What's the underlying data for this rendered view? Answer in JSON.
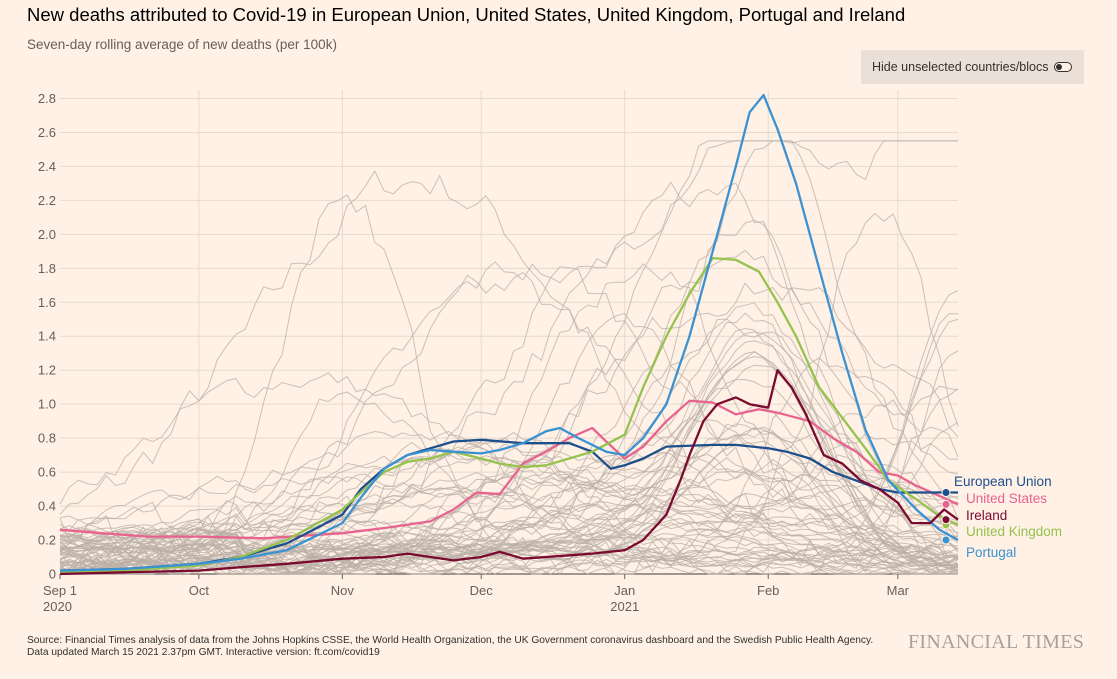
{
  "title": "New deaths attributed to Covid-19 in European Union, United States, United Kingdom, Portugal and Ireland",
  "subtitle": "Seven-day rolling average of new deaths (per 100k)",
  "toggle": {
    "label": "Hide unselected countries/blocs",
    "state": "off"
  },
  "footer": {
    "source": "Source: Financial Times analysis of data from the Johns Hopkins CSSE, the World Health Organization, the UK Government coronavirus dashboard and the Swedish Public Health Agency.",
    "updated": "Data updated March 15 2021 2.37pm GMT. Interactive version: ft.com/covid19"
  },
  "brand": "FINANCIAL TIMES",
  "colors": {
    "background": "#FFF1E5",
    "grid": "#E6D9CE",
    "background_lines": "#B9AFA7",
    "European Union": "#1D4F8C",
    "United States": "#E8638F",
    "Ireland": "#7A0A2F",
    "United Kingdom": "#96C24E",
    "Portugal": "#3A92D2"
  },
  "chart_data": {
    "type": "line",
    "x_type": "date",
    "xlim": [
      "2020-09-01",
      "2021-03-14"
    ],
    "ylim": [
      0,
      2.85
    ],
    "yticks": [
      0,
      0.2,
      0.4,
      0.6,
      0.8,
      1.0,
      1.2,
      1.4,
      1.6,
      1.8,
      2.0,
      2.2,
      2.4,
      2.6,
      2.8
    ],
    "ytick_labels": [
      "0",
      "0.2",
      "0.4",
      "0.6",
      "0.8",
      "1.0",
      "1.2",
      "1.4",
      "1.6",
      "1.8",
      "2.0",
      "2.2",
      "2.4",
      "2.6",
      "2.8"
    ],
    "xticks": [
      {
        "date": "2020-09-01",
        "label": "Sep 1",
        "sublabel": "2020"
      },
      {
        "date": "2020-10-01",
        "label": "Oct",
        "sublabel": ""
      },
      {
        "date": "2020-11-01",
        "label": "Nov",
        "sublabel": ""
      },
      {
        "date": "2020-12-01",
        "label": "Dec",
        "sublabel": ""
      },
      {
        "date": "2021-01-01",
        "label": "Jan",
        "sublabel": "2021"
      },
      {
        "date": "2021-02-01",
        "label": "Feb",
        "sublabel": ""
      },
      {
        "date": "2021-03-01",
        "label": "Mar",
        "sublabel": ""
      }
    ],
    "grid": "horizontal",
    "series": [
      {
        "name": "United States",
        "points": [
          [
            "2020-09-01",
            0.26
          ],
          [
            "2020-09-10",
            0.24
          ],
          [
            "2020-09-20",
            0.22
          ],
          [
            "2020-10-01",
            0.22
          ],
          [
            "2020-10-15",
            0.21
          ],
          [
            "2020-11-01",
            0.24
          ],
          [
            "2020-11-10",
            0.27
          ],
          [
            "2020-11-20",
            0.31
          ],
          [
            "2020-11-25",
            0.38
          ],
          [
            "2020-11-30",
            0.48
          ],
          [
            "2020-12-05",
            0.47
          ],
          [
            "2020-12-10",
            0.65
          ],
          [
            "2020-12-15",
            0.72
          ],
          [
            "2020-12-20",
            0.8
          ],
          [
            "2020-12-25",
            0.86
          ],
          [
            "2020-12-28",
            0.78
          ],
          [
            "2021-01-01",
            0.68
          ],
          [
            "2021-01-05",
            0.75
          ],
          [
            "2021-01-10",
            0.9
          ],
          [
            "2021-01-15",
            1.02
          ],
          [
            "2021-01-20",
            1.01
          ],
          [
            "2021-01-25",
            0.94
          ],
          [
            "2021-01-30",
            0.97
          ],
          [
            "2021-02-03",
            0.95
          ],
          [
            "2021-02-10",
            0.9
          ],
          [
            "2021-02-15",
            0.8
          ],
          [
            "2021-02-20",
            0.72
          ],
          [
            "2021-02-25",
            0.6
          ],
          [
            "2021-03-01",
            0.58
          ],
          [
            "2021-03-05",
            0.52
          ],
          [
            "2021-03-10",
            0.46
          ],
          [
            "2021-03-14",
            0.41
          ]
        ]
      },
      {
        "name": "European Union",
        "points": [
          [
            "2020-09-01",
            0.02
          ],
          [
            "2020-09-15",
            0.03
          ],
          [
            "2020-10-01",
            0.06
          ],
          [
            "2020-10-10",
            0.1
          ],
          [
            "2020-10-20",
            0.18
          ],
          [
            "2020-10-25",
            0.25
          ],
          [
            "2020-11-01",
            0.35
          ],
          [
            "2020-11-05",
            0.5
          ],
          [
            "2020-11-10",
            0.62
          ],
          [
            "2020-11-15",
            0.7
          ],
          [
            "2020-11-20",
            0.74
          ],
          [
            "2020-11-25",
            0.78
          ],
          [
            "2020-12-01",
            0.79
          ],
          [
            "2020-12-10",
            0.77
          ],
          [
            "2020-12-15",
            0.77
          ],
          [
            "2020-12-20",
            0.77
          ],
          [
            "2020-12-25",
            0.72
          ],
          [
            "2020-12-29",
            0.62
          ],
          [
            "2021-01-01",
            0.64
          ],
          [
            "2021-01-05",
            0.68
          ],
          [
            "2021-01-10",
            0.75
          ],
          [
            "2021-01-20",
            0.76
          ],
          [
            "2021-01-25",
            0.76
          ],
          [
            "2021-02-01",
            0.74
          ],
          [
            "2021-02-05",
            0.72
          ],
          [
            "2021-02-10",
            0.68
          ],
          [
            "2021-02-15",
            0.6
          ],
          [
            "2021-02-20",
            0.55
          ],
          [
            "2021-02-25",
            0.5
          ],
          [
            "2021-03-01",
            0.48
          ],
          [
            "2021-03-05",
            0.48
          ],
          [
            "2021-03-10",
            0.48
          ],
          [
            "2021-03-14",
            0.48
          ]
        ]
      },
      {
        "name": "United Kingdom",
        "points": [
          [
            "2020-09-01",
            0.01
          ],
          [
            "2020-09-15",
            0.02
          ],
          [
            "2020-10-01",
            0.05
          ],
          [
            "2020-10-10",
            0.1
          ],
          [
            "2020-10-20",
            0.2
          ],
          [
            "2020-11-01",
            0.38
          ],
          [
            "2020-11-05",
            0.48
          ],
          [
            "2020-11-10",
            0.6
          ],
          [
            "2020-11-15",
            0.66
          ],
          [
            "2020-11-20",
            0.68
          ],
          [
            "2020-11-25",
            0.72
          ],
          [
            "2020-12-01",
            0.68
          ],
          [
            "2020-12-05",
            0.65
          ],
          [
            "2020-12-10",
            0.63
          ],
          [
            "2020-12-15",
            0.64
          ],
          [
            "2020-12-20",
            0.68
          ],
          [
            "2020-12-25",
            0.72
          ],
          [
            "2021-01-01",
            0.82
          ],
          [
            "2021-01-05",
            1.1
          ],
          [
            "2021-01-10",
            1.4
          ],
          [
            "2021-01-15",
            1.65
          ],
          [
            "2021-01-20",
            1.86
          ],
          [
            "2021-01-25",
            1.85
          ],
          [
            "2021-01-30",
            1.78
          ],
          [
            "2021-02-03",
            1.6
          ],
          [
            "2021-02-07",
            1.4
          ],
          [
            "2021-02-12",
            1.1
          ],
          [
            "2021-02-17",
            0.92
          ],
          [
            "2021-02-22",
            0.74
          ],
          [
            "2021-02-27",
            0.55
          ],
          [
            "2021-03-05",
            0.44
          ],
          [
            "2021-03-10",
            0.34
          ],
          [
            "2021-03-14",
            0.29
          ]
        ]
      },
      {
        "name": "Portugal",
        "points": [
          [
            "2020-09-01",
            0.02
          ],
          [
            "2020-09-15",
            0.03
          ],
          [
            "2020-10-01",
            0.06
          ],
          [
            "2020-10-10",
            0.09
          ],
          [
            "2020-10-20",
            0.14
          ],
          [
            "2020-11-01",
            0.3
          ],
          [
            "2020-11-05",
            0.45
          ],
          [
            "2020-11-10",
            0.62
          ],
          [
            "2020-11-15",
            0.7
          ],
          [
            "2020-11-20",
            0.73
          ],
          [
            "2020-11-25",
            0.72
          ],
          [
            "2020-12-01",
            0.71
          ],
          [
            "2020-12-05",
            0.73
          ],
          [
            "2020-12-10",
            0.77
          ],
          [
            "2020-12-15",
            0.84
          ],
          [
            "2020-12-18",
            0.86
          ],
          [
            "2020-12-22",
            0.8
          ],
          [
            "2020-12-28",
            0.72
          ],
          [
            "2021-01-01",
            0.7
          ],
          [
            "2021-01-05",
            0.8
          ],
          [
            "2021-01-10",
            1.0
          ],
          [
            "2021-01-15",
            1.4
          ],
          [
            "2021-01-20",
            1.9
          ],
          [
            "2021-01-25",
            2.4
          ],
          [
            "2021-01-28",
            2.72
          ],
          [
            "2021-01-31",
            2.82
          ],
          [
            "2021-02-03",
            2.62
          ],
          [
            "2021-02-07",
            2.3
          ],
          [
            "2021-02-12",
            1.8
          ],
          [
            "2021-02-17",
            1.3
          ],
          [
            "2021-02-22",
            0.85
          ],
          [
            "2021-02-27",
            0.55
          ],
          [
            "2021-03-05",
            0.38
          ],
          [
            "2021-03-10",
            0.26
          ],
          [
            "2021-03-14",
            0.2
          ]
        ]
      },
      {
        "name": "Ireland",
        "points": [
          [
            "2020-09-01",
            0.0
          ],
          [
            "2020-09-15",
            0.01
          ],
          [
            "2020-10-01",
            0.02
          ],
          [
            "2020-10-10",
            0.04
          ],
          [
            "2020-10-20",
            0.06
          ],
          [
            "2020-11-01",
            0.09
          ],
          [
            "2020-11-10",
            0.1
          ],
          [
            "2020-11-15",
            0.12
          ],
          [
            "2020-11-20",
            0.1
          ],
          [
            "2020-11-25",
            0.08
          ],
          [
            "2020-12-01",
            0.1
          ],
          [
            "2020-12-05",
            0.13
          ],
          [
            "2020-12-10",
            0.09
          ],
          [
            "2020-12-15",
            0.1
          ],
          [
            "2020-12-20",
            0.11
          ],
          [
            "2020-12-25",
            0.12
          ],
          [
            "2021-01-01",
            0.14
          ],
          [
            "2021-01-05",
            0.2
          ],
          [
            "2021-01-10",
            0.35
          ],
          [
            "2021-01-13",
            0.55
          ],
          [
            "2021-01-15",
            0.7
          ],
          [
            "2021-01-18",
            0.9
          ],
          [
            "2021-01-21",
            1.0
          ],
          [
            "2021-01-25",
            1.04
          ],
          [
            "2021-01-28",
            1.0
          ],
          [
            "2021-02-01",
            0.98
          ],
          [
            "2021-02-03",
            1.2
          ],
          [
            "2021-02-06",
            1.1
          ],
          [
            "2021-02-09",
            0.95
          ],
          [
            "2021-02-13",
            0.7
          ],
          [
            "2021-02-17",
            0.65
          ],
          [
            "2021-02-21",
            0.55
          ],
          [
            "2021-02-25",
            0.5
          ],
          [
            "2021-03-01",
            0.42
          ],
          [
            "2021-03-04",
            0.3
          ],
          [
            "2021-03-08",
            0.3
          ],
          [
            "2021-03-11",
            0.38
          ],
          [
            "2021-03-14",
            0.32
          ]
        ]
      }
    ]
  }
}
